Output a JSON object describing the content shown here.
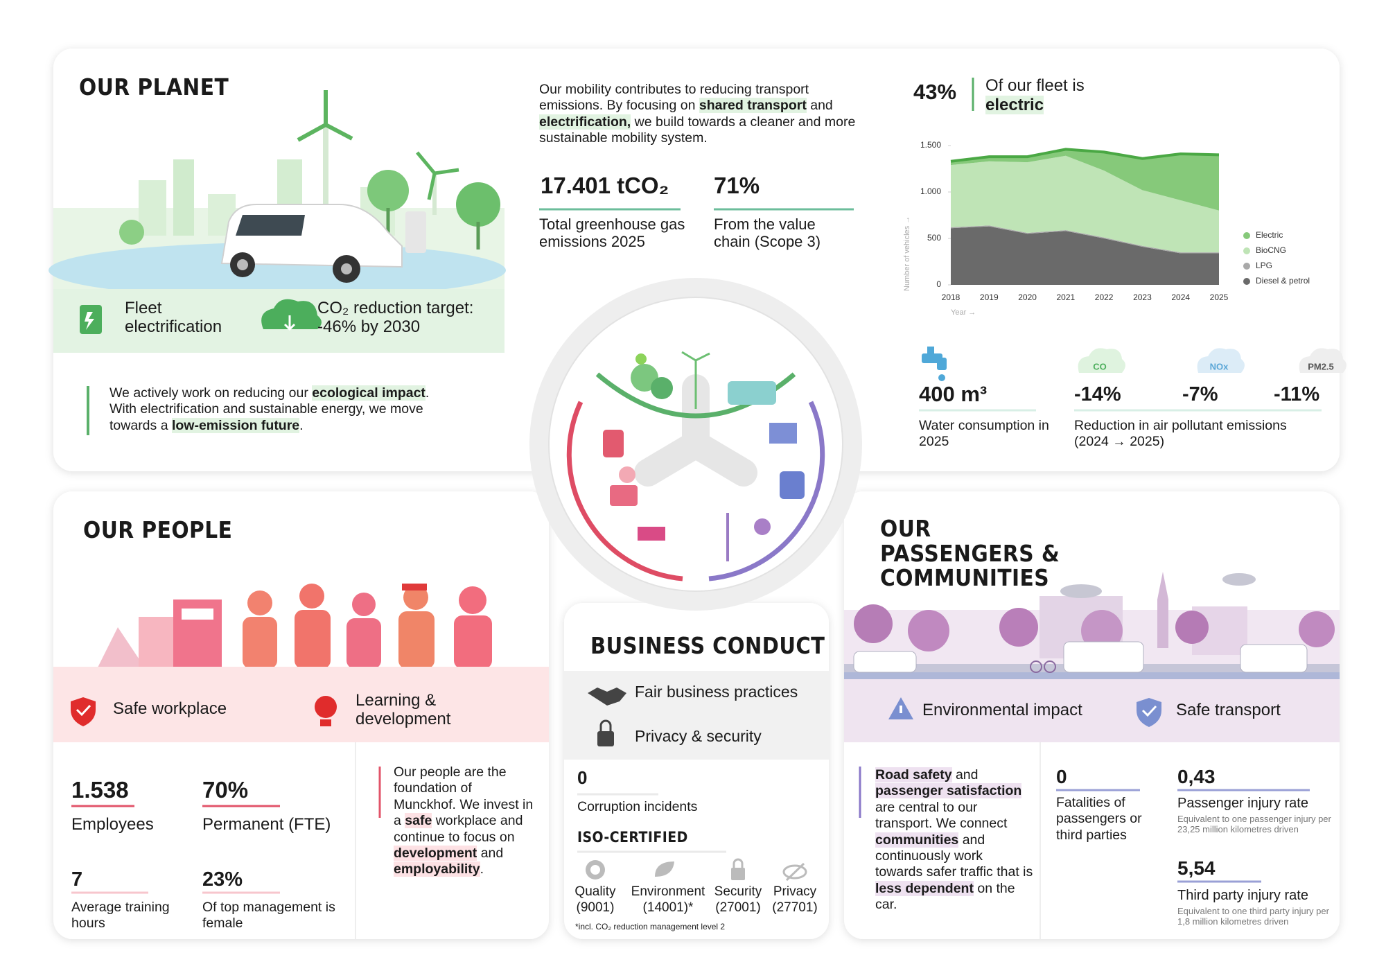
{
  "planet": {
    "title": "OUR PLANET",
    "features": [
      "Fleet electrification",
      "CO₂ reduction target: -46% by 2030"
    ],
    "statement": [
      "We actively work on reducing our ",
      "ecological impact",
      ". With electrification and sustainable energy, we move towards a ",
      "low-emission future",
      "."
    ],
    "intro": [
      "Our mobility contributes to reducing transport emissions. By focusing on ",
      "shared transport",
      " and ",
      "electrification,",
      " we build towards a cleaner and more sustainable mobility system."
    ],
    "stats": [
      {
        "value": "17.401 tCO₂",
        "label": "Total greenhouse gas emissions 2025"
      },
      {
        "value": "71%",
        "label": "From the value chain (Scope 3)"
      }
    ],
    "fleet_electric": {
      "value": "43%",
      "label": [
        "Of our fleet is ",
        "electric"
      ]
    },
    "water": {
      "value": "400 m³",
      "label": "Water consumption in 2025"
    },
    "pollutants": {
      "items": [
        {
          "name": "CO",
          "value": "-14%"
        },
        {
          "name": "NOx",
          "value": "-7%"
        },
        {
          "name": "PM2.5",
          "value": "-11%"
        }
      ],
      "label": "Reduction in air pollutant emissions (2024 → 2025)"
    }
  },
  "chart_data": {
    "type": "area",
    "stacked": true,
    "xlabel": "Year →",
    "ylabel": "Number of vehicles →",
    "categories": [
      "2018",
      "2019",
      "2020",
      "2021",
      "2022",
      "2023",
      "2024",
      "2025"
    ],
    "series": [
      {
        "name": "Diesel & petrol",
        "color": "#6a6a6a",
        "values": [
          610,
          630,
          550,
          580,
          500,
          410,
          340,
          340
        ]
      },
      {
        "name": "LPG",
        "color": "#a9a9a9",
        "values": [
          10,
          10,
          10,
          10,
          10,
          10,
          10,
          10
        ]
      },
      {
        "name": "BioCNG",
        "color": "#bfe4b6",
        "values": [
          670,
          690,
          760,
          800,
          720,
          600,
          560,
          450
        ]
      },
      {
        "name": "Electric",
        "color": "#86c97a",
        "values": [
          40,
          50,
          60,
          70,
          200,
          340,
          500,
          600
        ]
      }
    ],
    "ylim": [
      0,
      1500
    ],
    "yticks": [
      0,
      500,
      {
        "value": 1000,
        "label": "1.000"
      },
      {
        "value": 1500,
        "label": "1.500"
      }
    ],
    "grid": false,
    "legend": "right"
  },
  "people": {
    "title": "OUR PEOPLE",
    "features": [
      "Safe workplace",
      "Learning & development"
    ],
    "stats": [
      {
        "value": "1.538",
        "label": "Employees"
      },
      {
        "value": "70%",
        "label": "Permanent (FTE)"
      },
      {
        "value": "7",
        "label": "Average training hours"
      },
      {
        "value": "23%",
        "label": "Of top management is female"
      }
    ],
    "statement": [
      "Our people are the foundation of Munckhof. We invest in a ",
      "safe",
      " workplace and continue to focus on ",
      "development",
      " and ",
      "employability",
      "."
    ]
  },
  "business": {
    "title": "BUSINESS CONDUCT",
    "features": [
      "Fair business practices",
      "Privacy & security"
    ],
    "corruption": {
      "value": "0",
      "label": "Corruption incidents"
    },
    "iso_title": "ISO-CERTIFIED",
    "certificates": [
      {
        "name": "Quality",
        "code": "(9001)"
      },
      {
        "name": "Environment",
        "code": "(14001)*"
      },
      {
        "name": "Security",
        "code": "(27001)"
      },
      {
        "name": "Privacy",
        "code": "(27701)"
      }
    ],
    "footnote": "*incl. CO₂ reduction management level 2"
  },
  "passengers": {
    "title": "OUR PASSENGERS & COMMUNITIES",
    "features": [
      "Environmental impact",
      "Safe transport"
    ],
    "statement": [
      "Road safety",
      " and ",
      "passenger satisfaction",
      " are central to our transport. We connect ",
      "communities",
      " and continuously work towards safer traffic that is ",
      "less dependent",
      " on the car."
    ],
    "stats": [
      {
        "value": "0",
        "label": "Fatalities of passengers or third parties"
      },
      {
        "value": "0,43",
        "label": "Passenger injury rate",
        "note": "Equivalent to one passenger injury per 23,25 million kilometres driven"
      },
      {
        "value": "5,54",
        "label": "Third party injury rate",
        "note": "Equivalent to one third party injury per 1,8 million kilometres driven"
      }
    ]
  }
}
